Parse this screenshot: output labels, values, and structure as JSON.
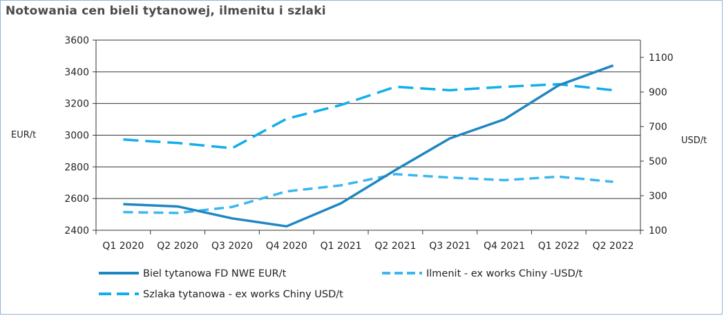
{
  "chart_data": {
    "type": "line",
    "title": "Notowania cen bieli tytanowej, ilmenitu i szlaki",
    "categories": [
      "Q1 2020",
      "Q2 2020",
      "Q3 2020",
      "Q4 2020",
      "Q1 2021",
      "Q2 2021",
      "Q3 2021",
      "Q4 2021",
      "Q1 2022",
      "Q2 2022"
    ],
    "ylabel_left": "EUR/t",
    "ylabel_right": "USD/t",
    "ylim_left": [
      2400,
      3600
    ],
    "yticks_left": [
      2400,
      2600,
      2800,
      3000,
      3200,
      3400,
      3600
    ],
    "ylim_right": [
      100,
      1200
    ],
    "yticks_right": [
      100,
      300,
      500,
      700,
      900,
      1100
    ],
    "grid": true,
    "legend_position": "bottom",
    "series": [
      {
        "name": "Biel tytanowa FD NWE EUR/t",
        "axis": "left",
        "style": "solid",
        "color": "#1f86c2",
        "values": [
          2565,
          2550,
          2475,
          2425,
          2570,
          2780,
          2980,
          3100,
          3315,
          3440
        ]
      },
      {
        "name": "Ilmenit - ex works Chiny -USD/t",
        "axis": "right",
        "style": "dashed",
        "color": "#3cb6f0",
        "values": [
          205,
          200,
          235,
          325,
          360,
          425,
          405,
          390,
          410,
          380
        ]
      },
      {
        "name": "Szlaka tytanowa - ex works Chiny USD/t",
        "axis": "right",
        "style": "dashed",
        "color": "#12aeea",
        "values": [
          625,
          605,
          575,
          745,
          825,
          930,
          910,
          930,
          945,
          910
        ]
      }
    ]
  }
}
